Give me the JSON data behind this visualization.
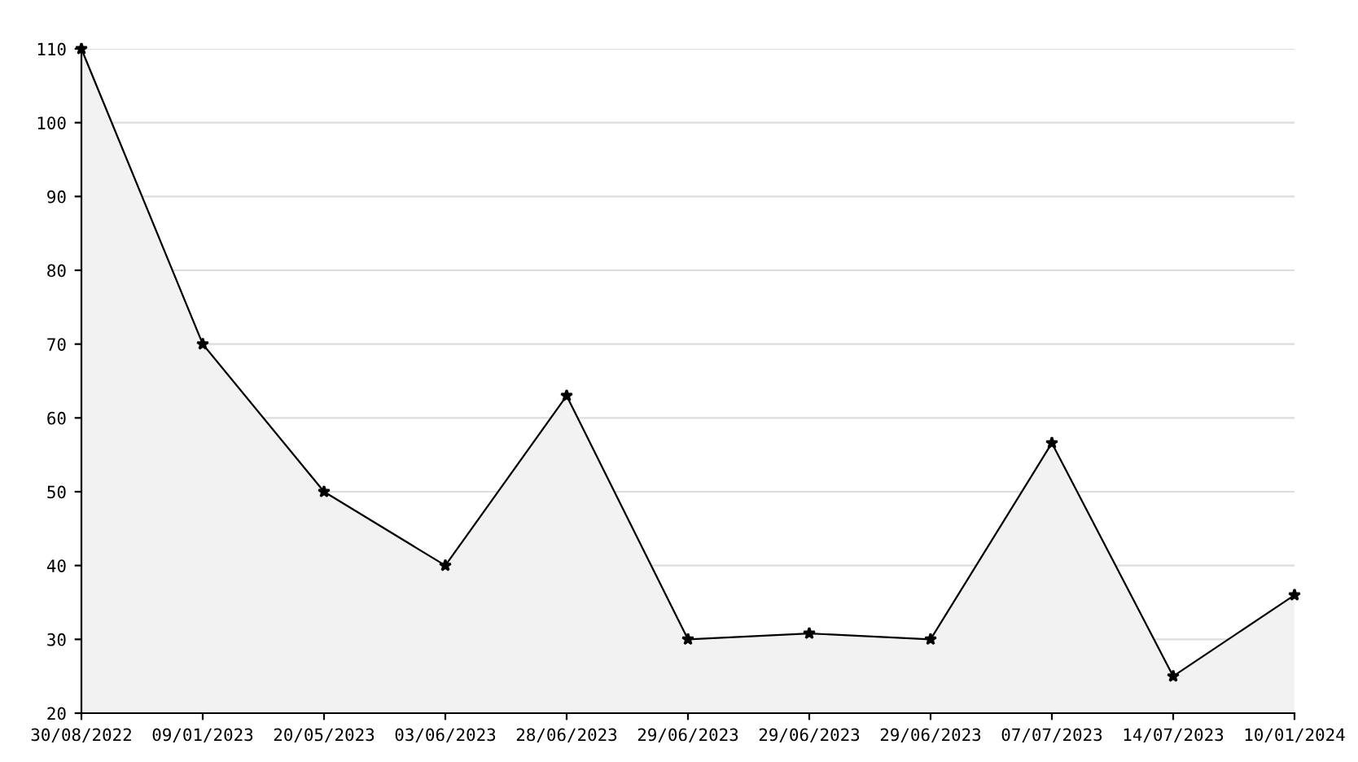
{
  "chart_data": {
    "type": "area",
    "categories": [
      "30/08/2022",
      "09/01/2023",
      "20/05/2023",
      "03/06/2023",
      "28/06/2023",
      "29/06/2023",
      "29/06/2023",
      "29/06/2023",
      "07/07/2023",
      "14/07/2023",
      "10/01/2024"
    ],
    "series": [
      {
        "color": "#000000",
        "values": [
          110,
          70,
          50,
          40,
          63,
          30,
          30.8,
          30,
          56.6,
          25,
          36
        ]
      }
    ],
    "ylim": [
      20,
      110
    ],
    "yticks": [
      20,
      30,
      40,
      50,
      60,
      70,
      80,
      90,
      100,
      110
    ],
    "grid": "y",
    "marker": "star",
    "line_style": "solid",
    "legend": false
  }
}
